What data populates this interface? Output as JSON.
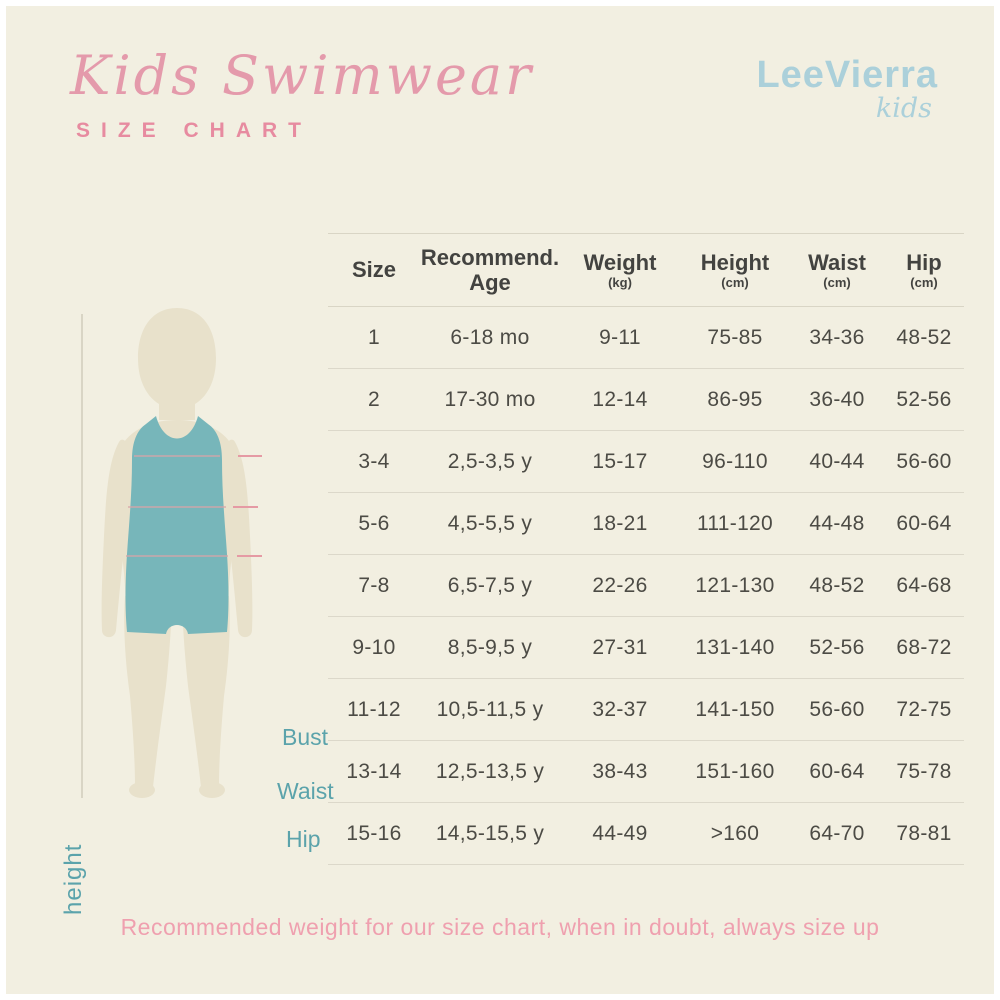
{
  "header": {
    "title_script": "Kids Swimwear",
    "title_sub": "SIZE CHART",
    "brand_name": "LeeVierra",
    "brand_sub": "kids"
  },
  "figure": {
    "height_label": "height",
    "measure_labels": {
      "bust": "Bust",
      "waist": "Waist",
      "hip": "Hip"
    }
  },
  "chart_data": {
    "type": "table",
    "columns": [
      {
        "label": "Size",
        "unit": ""
      },
      {
        "label": "Recommend. Age",
        "unit": ""
      },
      {
        "label": "Weight",
        "unit": "(kg)"
      },
      {
        "label": "Height",
        "unit": "(cm)"
      },
      {
        "label": "Waist",
        "unit": "(cm)"
      },
      {
        "label": "Hip",
        "unit": "(cm)"
      }
    ],
    "rows": [
      [
        "1",
        "6-18 mo",
        "9-11",
        "75-85",
        "34-36",
        "48-52"
      ],
      [
        "2",
        "17-30 mo",
        "12-14",
        "86-95",
        "36-40",
        "52-56"
      ],
      [
        "3-4",
        "2,5-3,5 y",
        "15-17",
        "96-110",
        "40-44",
        "56-60"
      ],
      [
        "5-6",
        "4,5-5,5 y",
        "18-21",
        "111-120",
        "44-48",
        "60-64"
      ],
      [
        "7-8",
        "6,5-7,5 y",
        "22-26",
        "121-130",
        "48-52",
        "64-68"
      ],
      [
        "9-10",
        "8,5-9,5 y",
        "27-31",
        "131-140",
        "52-56",
        "68-72"
      ],
      [
        "11-12",
        "10,5-11,5 y",
        "32-37",
        "141-150",
        "56-60",
        "72-75"
      ],
      [
        "13-14",
        "12,5-13,5 y",
        "38-43",
        "151-160",
        "60-64",
        "75-78"
      ],
      [
        "15-16",
        "14,5-15,5 y",
        "44-49",
        ">160",
        "64-70",
        "78-81"
      ]
    ]
  },
  "footnote": "Recommended weight for our size chart, when in doubt, always size up",
  "colors": {
    "background": "#f2efe1",
    "pink_title": "#e49aab",
    "pink_sub": "#e78ba0",
    "pink_footnote": "#efa0af",
    "brand_blue": "#abd0da",
    "teal_label": "#5ba3ab",
    "swimsuit_teal": "#77b6ba",
    "body_beige": "#e8e1cb",
    "line_gray": "#d9d5c5",
    "table_text": "#4c4b45"
  }
}
